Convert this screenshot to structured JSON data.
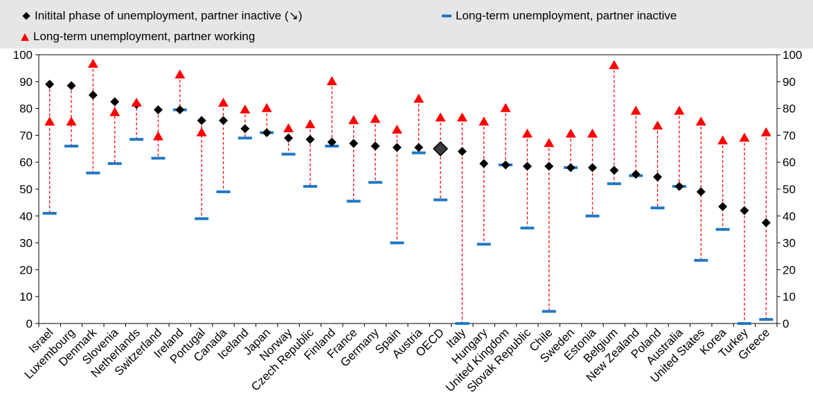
{
  "legend": {
    "series1": "Initital phase of unemployment, partner inactive (↘)",
    "series2": "Long-term unemployment, partner inactive",
    "series3": "Long-term unemployment, partner working"
  },
  "colors": {
    "diamond": "#000000",
    "highlight_diamond": "#3a3a3a",
    "bar": "#1f77c4",
    "triangle": "#ff0000",
    "dashed_line": "#ff0000",
    "legend_background": "#e6e6e6"
  },
  "chart_data": {
    "type": "scatter",
    "ylim": [
      0,
      100
    ],
    "yticks": [
      0,
      10,
      20,
      30,
      40,
      50,
      60,
      70,
      80,
      90,
      100
    ],
    "categories": [
      "Israel",
      "Luxembourg",
      "Denmark",
      "Slovenia",
      "Netherlands",
      "Switzerland",
      "Ireland",
      "Portugal",
      "Canada",
      "Iceland",
      "Japan",
      "Norway",
      "Czech Republic",
      "Finland",
      "France",
      "Germany",
      "Spain",
      "Austria",
      "OECD",
      "Italy",
      "Hungary",
      "United Kingdom",
      "Slovak Republic",
      "Chile",
      "Sweden",
      "Estonia",
      "Belgium",
      "New Zealand",
      "Poland",
      "Australia",
      "United States",
      "Korea",
      "Turkey",
      "Greece"
    ],
    "highlight": "OECD",
    "series": [
      {
        "name": "Initital phase of unemployment, partner inactive (↘)",
        "marker": "diamond",
        "values": [
          89,
          88.5,
          85,
          82.5,
          81.5,
          79.5,
          79.5,
          75.5,
          75.5,
          72.5,
          71,
          69,
          68.5,
          67.5,
          67,
          66,
          65.5,
          65.5,
          65,
          64,
          59.5,
          59,
          58.5,
          58.5,
          58,
          58,
          57,
          55.5,
          54.5,
          51,
          49,
          43.5,
          42,
          37.5
        ]
      },
      {
        "name": "Long-term unemployment, partner inactive",
        "marker": "bar",
        "values": [
          41,
          66,
          56,
          59.5,
          68.5,
          61.5,
          79.5,
          39,
          49,
          69,
          71,
          63,
          51,
          66,
          45.5,
          52.5,
          30,
          63.5,
          46,
          0,
          29.5,
          59,
          35.5,
          4.5,
          58,
          40,
          52,
          55,
          43,
          51,
          23.5,
          35,
          0,
          1.5
        ]
      },
      {
        "name": "Long-term unemployment, partner working",
        "marker": "triangle",
        "values": [
          75,
          75,
          96.5,
          78.5,
          82,
          69.5,
          92.5,
          71,
          82,
          79.5,
          80,
          72.5,
          74,
          90,
          75.5,
          76,
          72,
          83.5,
          76.5,
          76.5,
          75,
          80,
          70.5,
          67,
          70.5,
          70.5,
          96,
          79,
          73.5,
          79,
          75,
          68,
          69,
          71
        ]
      }
    ]
  }
}
